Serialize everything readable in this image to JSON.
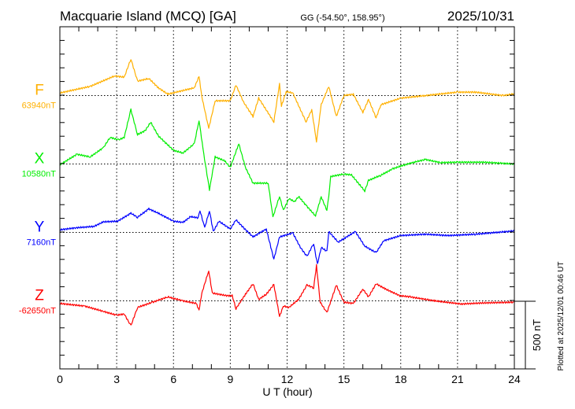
{
  "chart_data": {
    "type": "line",
    "title": "Macquarie Island (MCQ)  [GA]",
    "subtitle": "GG (-54.50°, 158.95°)",
    "date": "2025/10/31",
    "xlabel": "U T (hour)",
    "xlim": [
      0,
      24
    ],
    "xticks": [
      "0",
      "3",
      "6",
      "9",
      "12",
      "15",
      "18",
      "21",
      "24"
    ],
    "scale_label": "500 nT",
    "scale_nT": 500,
    "panel_range_nT": [
      -500,
      500
    ],
    "grid": true,
    "footer": "Plotted at 2025/12/01 00:46 UT",
    "series": [
      {
        "name": "F",
        "baseline_label": "63940nT",
        "color": "#ffb000",
        "x": [
          0,
          1.6,
          2.9,
          3.4,
          3.75,
          4.1,
          4.7,
          5.2,
          5.7,
          7.1,
          7.35,
          7.5,
          7.86,
          8.2,
          9.0,
          9.3,
          9.7,
          10.2,
          10.5,
          11.3,
          11.6,
          11.7,
          11.95,
          12.3,
          13.0,
          13.3,
          13.55,
          13.8,
          14.2,
          14.6,
          15.0,
          15.5,
          16.0,
          16.3,
          16.7,
          16.95,
          18.0,
          19.3,
          21.0,
          21.95,
          23.4,
          24
        ],
        "y": [
          19,
          67,
          144,
          134,
          268,
          105,
          125,
          57,
          10,
          57,
          140,
          -10,
          -240,
          -38,
          -38,
          77,
          -48,
          -153,
          -19,
          -192,
          86,
          -77,
          29,
          19,
          -192,
          -105,
          -335,
          -67,
          67,
          -153,
          0,
          10,
          -125,
          -29,
          -163,
          -67,
          -19,
          0,
          25,
          25,
          0,
          13
        ]
      },
      {
        "name": "X",
        "baseline_label": "10580nT",
        "color": "#00ee00",
        "x": [
          0,
          0.9,
          1.6,
          2.3,
          2.65,
          3.1,
          3.4,
          3.75,
          4.1,
          4.5,
          4.8,
          5.2,
          6.0,
          6.5,
          7.1,
          7.35,
          7.6,
          7.9,
          8.2,
          8.7,
          9.0,
          9.45,
          9.8,
          10.2,
          11.0,
          11.25,
          11.6,
          11.8,
          12.1,
          12.4,
          12.6,
          13.05,
          13.5,
          13.8,
          14.1,
          14.2,
          14.3,
          15.0,
          15.4,
          16.1,
          16.3,
          16.95,
          17.6,
          18.0,
          18.7,
          19.3,
          20.1,
          21.0,
          22.4,
          24
        ],
        "y": [
          -6,
          71,
          52,
          119,
          195,
          176,
          195,
          397,
          215,
          243,
          305,
          205,
          100,
          80,
          148,
          320,
          71,
          -188,
          52,
          23,
          -25,
          148,
          -25,
          -140,
          -140,
          -389,
          -235,
          -339,
          -253,
          -276,
          -236,
          -310,
          -379,
          -240,
          -339,
          -236,
          -92,
          -73,
          -80,
          -197,
          -120,
          -82,
          -34,
          -15,
          13,
          33,
          10,
          13,
          13,
          0
        ]
      },
      {
        "name": "Y",
        "baseline_label": "7160nT",
        "color": "#0000ff",
        "x": [
          0,
          0.86,
          1.8,
          2.3,
          3.05,
          3.75,
          4.1,
          4.7,
          5.2,
          6.0,
          6.5,
          6.9,
          7.3,
          7.4,
          7.65,
          7.9,
          8.1,
          8.4,
          9.0,
          9.3,
          9.7,
          10.2,
          10.9,
          11.3,
          11.6,
          12.3,
          12.7,
          13.05,
          13.4,
          13.6,
          13.8,
          14.1,
          14.2,
          14.7,
          15.6,
          16.1,
          16.7,
          17.1,
          18.0,
          19.3,
          20.5,
          21.95,
          24
        ],
        "y": [
          19,
          34,
          44,
          77,
          82,
          140,
          111,
          172,
          140,
          82,
          73,
          115,
          107,
          159,
          34,
          159,
          6,
          82,
          25,
          92,
          34,
          -33,
          25,
          -195,
          -33,
          -4,
          -109,
          -176,
          -80,
          -234,
          -109,
          -138,
          6,
          -71,
          6,
          -100,
          -148,
          -61,
          -23,
          -13,
          -23,
          -13,
          11
        ]
      },
      {
        "name": "Z",
        "baseline_label": "-62650nT",
        "color": "#ff0000",
        "x": [
          0,
          1.3,
          2.3,
          3.0,
          3.4,
          3.75,
          4.1,
          4.9,
          5.7,
          6.5,
          7.2,
          7.35,
          7.5,
          7.86,
          8.05,
          8.8,
          9.1,
          9.3,
          9.8,
          10.2,
          10.5,
          10.9,
          11.3,
          11.6,
          11.8,
          12.1,
          12.6,
          13.05,
          13.4,
          13.55,
          13.75,
          14.1,
          14.6,
          15.0,
          15.5,
          16.0,
          16.3,
          16.7,
          17.2,
          17.95,
          18.5,
          19.8,
          21.2,
          22.4,
          24
        ],
        "y": [
          -19,
          -38,
          -77,
          -105,
          -96,
          -182,
          -48,
          -10,
          29,
          0,
          -19,
          -67,
          57,
          220,
          57,
          38,
          38,
          -57,
          48,
          125,
          10,
          48,
          119,
          -115,
          -38,
          -48,
          10,
          115,
          96,
          259,
          -10,
          -86,
          115,
          -10,
          -19,
          86,
          29,
          125,
          86,
          38,
          29,
          0,
          -23,
          -15,
          -10
        ]
      }
    ]
  }
}
